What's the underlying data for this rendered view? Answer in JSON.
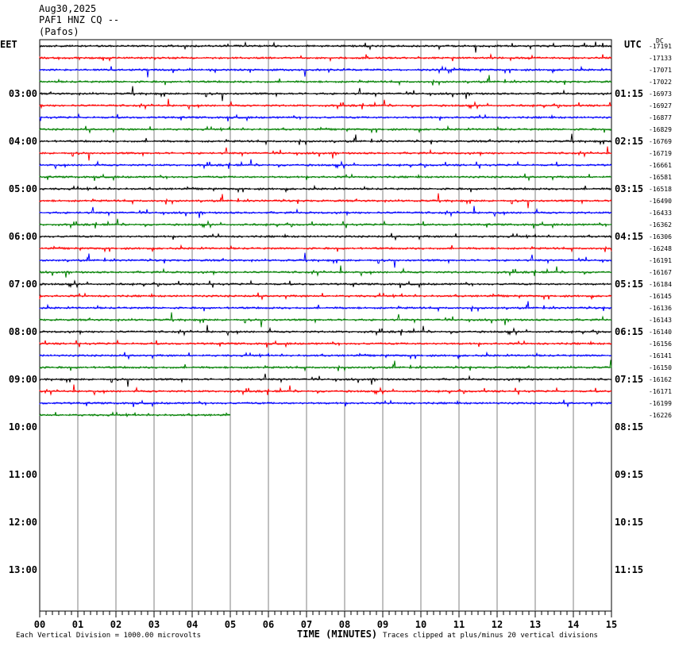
{
  "header": {
    "date": "Aug30,2025",
    "station": "PAF1 HNZ CQ --",
    "location": "(Pafos)",
    "left_timezone": "EET",
    "right_timezone": "UTC",
    "dc_label": "DC"
  },
  "footer": {
    "scale_note": "Each Vertical Division = 1000.00 microvolts",
    "xlabel": "TIME (MINUTES)",
    "clip_note": "Traces clipped at plus/minus 20 vertical divisions"
  },
  "colors": {
    "trace_cycle": [
      "#000000",
      "#ff0000",
      "#0000ff",
      "#008000"
    ],
    "grid": "#808080"
  },
  "chart_data": {
    "type": "line",
    "title": "Aug30,2025 PAF1 HNZ CQ -- (Pafos)",
    "xlabel": "TIME (MINUTES)",
    "x_ticks": [
      "00",
      "01",
      "02",
      "03",
      "04",
      "05",
      "06",
      "07",
      "08",
      "09",
      "10",
      "11",
      "12",
      "13",
      "14",
      "15"
    ],
    "xlim": [
      0,
      15
    ],
    "left_hour_labels": [
      "03:00",
      "04:00",
      "05:00",
      "06:00",
      "07:00",
      "08:00",
      "09:00",
      "10:00",
      "11:00",
      "12:00",
      "13:00"
    ],
    "right_hour_labels": [
      "01:15",
      "02:15",
      "03:15",
      "04:15",
      "05:15",
      "06:15",
      "07:15",
      "08:15",
      "09:15",
      "10:15",
      "11:15"
    ],
    "trace_minutes_per_line": 15,
    "last_trace_minutes": 5,
    "dc_offsets": [
      -17191,
      -17133,
      -17071,
      -17022,
      -16973,
      -16927,
      -16877,
      -16829,
      -16769,
      -16719,
      -16661,
      -16581,
      -16518,
      -16490,
      -16433,
      -16362,
      -16306,
      -16248,
      -16191,
      -16167,
      -16184,
      -16145,
      -16136,
      -16143,
      -16140,
      -16156,
      -16141,
      -16150,
      -16162,
      -16171,
      -16199,
      -16226
    ],
    "grid": true
  }
}
